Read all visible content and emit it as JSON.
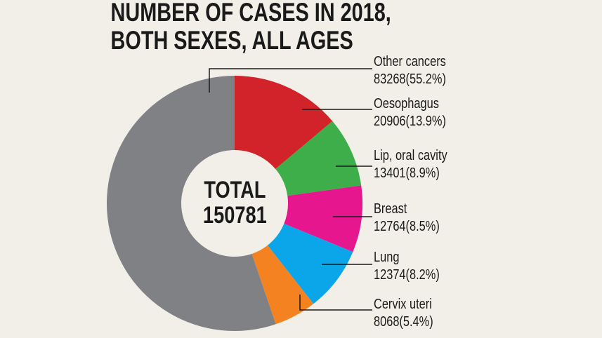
{
  "chart_data": {
    "type": "pie",
    "donut": true,
    "title_lines": [
      "NUMBER OF CASES IN 2018,",
      "BOTH SEXES, ALL AGES"
    ],
    "center_label": [
      "TOTAL",
      "150781"
    ],
    "slices": [
      {
        "name": "Oesophagus",
        "value": 20906,
        "percent_label": "20906(13.9%)",
        "color": "#d2232a"
      },
      {
        "name": "Lip, oral cavity",
        "value": 13401,
        "percent_label": "13401(8.9%)",
        "color": "#3dae4a"
      },
      {
        "name": "Breast",
        "value": 12764,
        "percent_label": "12764(8.5%)",
        "color": "#e5168e"
      },
      {
        "name": "Lung",
        "value": 12374,
        "percent_label": "12374(8.2%)",
        "color": "#0aa6e9"
      },
      {
        "name": "Cervix uteri",
        "value": 8068,
        "percent_label": "8068(5.4%)",
        "color": "#f58220"
      },
      {
        "name": "Other cancers",
        "value": 83268,
        "percent_label": "83268(55.2%)",
        "color": "#808184"
      }
    ],
    "background": "#f1efe8"
  }
}
